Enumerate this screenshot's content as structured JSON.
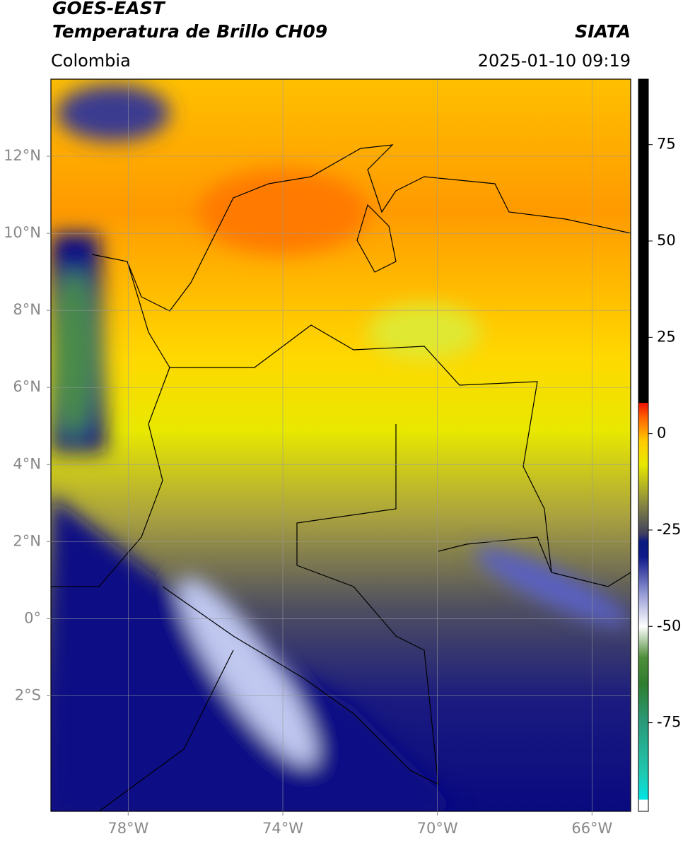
{
  "header": {
    "title": "GOES-EAST",
    "subtitle": "Temperatura de Brillo CH09",
    "source": "SIATA",
    "region": "Colombia",
    "datetime": "2025-01-10 09:19"
  },
  "chart_data": {
    "type": "map",
    "xlim": [
      -80,
      -65
    ],
    "ylim": [
      -5,
      14
    ],
    "xticks": [
      {
        "value": -78,
        "label": "78°W"
      },
      {
        "value": -74,
        "label": "74°W"
      },
      {
        "value": -70,
        "label": "70°W"
      },
      {
        "value": -66,
        "label": "66°W"
      }
    ],
    "yticks": [
      {
        "value": 12,
        "label": "12°N"
      },
      {
        "value": 10,
        "label": "10°N"
      },
      {
        "value": 8,
        "label": "8°N"
      },
      {
        "value": 6,
        "label": "6°N"
      },
      {
        "value": 4,
        "label": "4°N"
      },
      {
        "value": 2,
        "label": "2°N"
      },
      {
        "value": 0,
        "label": "0°"
      },
      {
        "value": -2,
        "label": "2°S"
      }
    ],
    "grid": true,
    "colorbar": {
      "clim": [
        -98,
        92
      ],
      "ticks": [
        75,
        50,
        25,
        0,
        -25,
        -50,
        -75
      ],
      "colormap": [
        {
          "value": -98,
          "color": "#ffffff"
        },
        {
          "value": -95,
          "color": "#ffffff"
        },
        {
          "value": -95,
          "color": "#00e5e5"
        },
        {
          "value": -88,
          "color": "#20c8b0"
        },
        {
          "value": -75,
          "color": "#2a9a7a"
        },
        {
          "value": -65,
          "color": "#2e7d2e"
        },
        {
          "value": -58,
          "color": "#4f8f3a"
        },
        {
          "value": -50,
          "color": "#ffffff"
        },
        {
          "value": -42,
          "color": "#9aa0d8"
        },
        {
          "value": -32,
          "color": "#101a8a"
        },
        {
          "value": -28,
          "color": "#0a1a80"
        },
        {
          "value": -26,
          "color": "#404060"
        },
        {
          "value": -18,
          "color": "#8a8a40"
        },
        {
          "value": -8,
          "color": "#e8e800"
        },
        {
          "value": -2,
          "color": "#ffcc00"
        },
        {
          "value": 4,
          "color": "#ff6600"
        },
        {
          "value": 8,
          "color": "#ee1100"
        },
        {
          "value": 8,
          "color": "#000000"
        },
        {
          "value": 92,
          "color": "#000000"
        }
      ]
    }
  }
}
